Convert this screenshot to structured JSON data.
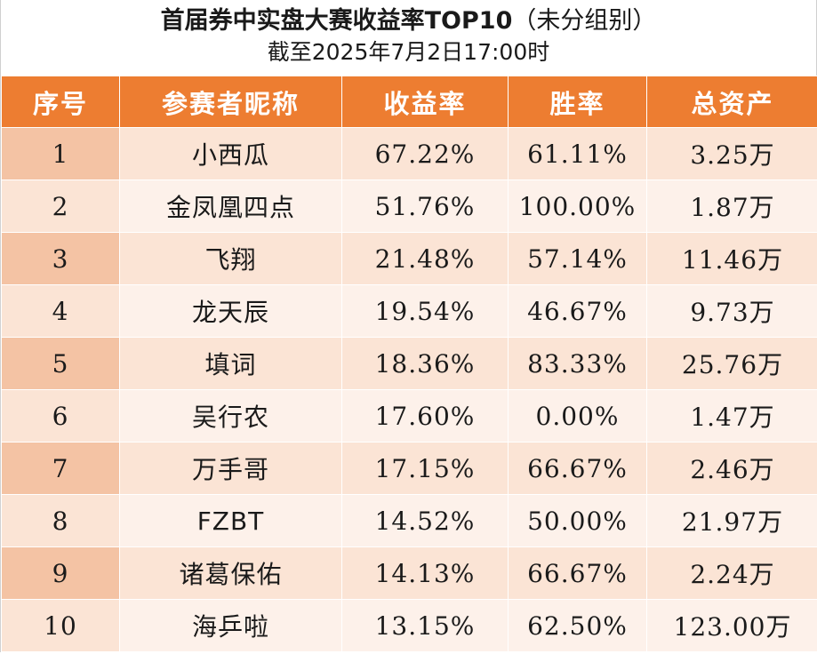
{
  "title": {
    "main": "首届券中实盘大赛收益率TOP10",
    "paren": "（未分组别）",
    "subtitle": "截至2025年7月2日17:00时"
  },
  "columns": [
    "序号",
    "参赛者昵称",
    "收益率",
    "胜率",
    "总资产"
  ],
  "rows": [
    {
      "rank": "1",
      "name": "小西瓜",
      "return": "67.22%",
      "win": "61.11%",
      "asset": "3.25万"
    },
    {
      "rank": "2",
      "name": "金凤凰四点",
      "return": "51.76%",
      "win": "100.00%",
      "asset": "1.87万"
    },
    {
      "rank": "3",
      "name": "飞翔",
      "return": "21.48%",
      "win": "57.14%",
      "asset": "11.46万"
    },
    {
      "rank": "4",
      "name": "龙天辰",
      "return": "19.54%",
      "win": "46.67%",
      "asset": "9.73万"
    },
    {
      "rank": "5",
      "name": "填词",
      "return": "18.36%",
      "win": "83.33%",
      "asset": "25.76万"
    },
    {
      "rank": "6",
      "name": "吴行农",
      "return": "17.60%",
      "win": "0.00%",
      "asset": "1.47万"
    },
    {
      "rank": "7",
      "name": "万手哥",
      "return": "17.15%",
      "win": "66.67%",
      "asset": "2.46万"
    },
    {
      "rank": "8",
      "name": "FZBT",
      "return": "14.52%",
      "win": "50.00%",
      "asset": "21.97万"
    },
    {
      "rank": "9",
      "name": "诸葛保佑",
      "return": "14.13%",
      "win": "66.67%",
      "asset": "2.24万"
    },
    {
      "rank": "10",
      "name": "海乒啦",
      "return": "13.15%",
      "win": "62.50%",
      "asset": "123.00万"
    }
  ],
  "colors": {
    "header_bg": "#ed7d31",
    "header_text": "#ffffff",
    "row_alt_a": "#f8cbad",
    "row_alt_b": "#fdf1ea"
  }
}
